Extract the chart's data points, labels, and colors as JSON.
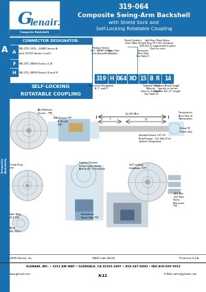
{
  "title_part": "319-064",
  "title_line1": "Composite Swing-Arm Backshell",
  "title_line2": "with Shield Sock and",
  "title_line3": "Self-Locking Rotatable Coupling",
  "header_bg": "#1a6faf",
  "white": "#ffffff",
  "sidebar_text": "Composite\nBackshells",
  "connector_designator_title": "CONNECTOR DESIGNATOR:",
  "conn_rows": [
    [
      "A",
      "MIL-DTL-5015, -26482 Series A,\nand -83723 Series I and II"
    ],
    [
      "F",
      "MIL-DTL-38999 Series II, III"
    ],
    [
      "H",
      "MIL-DTL-38999 Series III and IV"
    ]
  ],
  "self_locking_label": "SELF-LOCKING",
  "rotatable_label": "ROTATABLE COUPLING",
  "pn_values": [
    "319",
    "H",
    "064",
    "XO",
    "15",
    "B",
    "R",
    "14"
  ],
  "footer_company": "GLENAIR, INC.",
  "footer_addr": "1211 AIR WAY • GLENDALE, CA 91201-2497 • 818-247-6000 • FAX 818-500-9912",
  "footer_web": "www.glenair.com",
  "footer_email": "E-Mail: sales@glenair.com",
  "footer_page": "A-12",
  "cage_code": "CAGE Code 06324",
  "copyright": "© 2009 Glenair, Inc.",
  "printed": "Printed in U.S.A.",
  "bg": "#ffffff",
  "diag_gray": "#aaaaaa",
  "diag_light": "#d8e8f0",
  "diag_med": "#b0c8dc"
}
